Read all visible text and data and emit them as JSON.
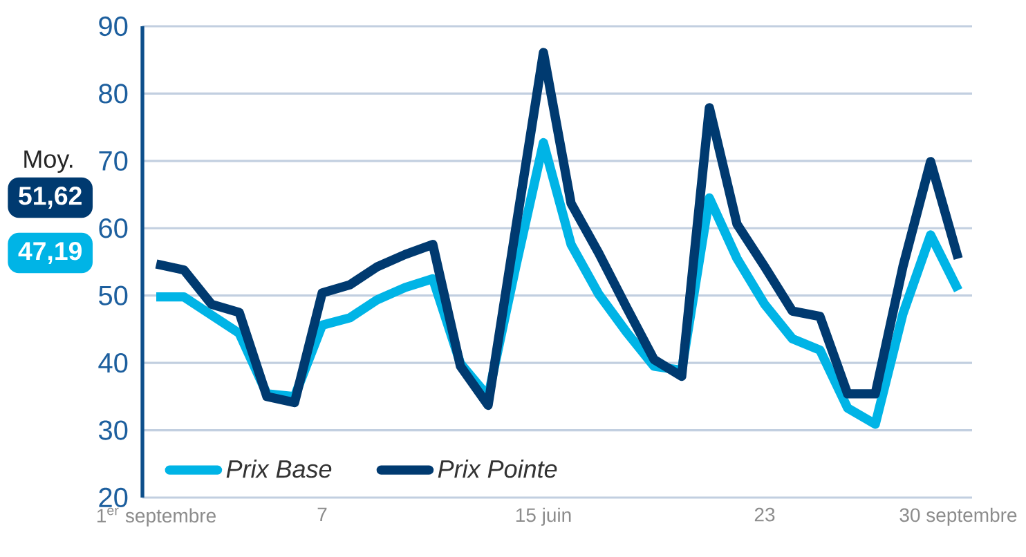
{
  "chart_data": {
    "type": "line",
    "x": [
      1,
      2,
      3,
      4,
      5,
      6,
      7,
      8,
      9,
      10,
      11,
      12,
      13,
      14,
      15,
      16,
      17,
      18,
      19,
      20,
      21,
      22,
      23,
      24,
      25,
      26,
      27,
      28,
      29,
      30
    ],
    "xlim": [
      0.5,
      30.5
    ],
    "xticks": [
      {
        "value": 1,
        "label": "1$^{er}$ septembre"
      },
      {
        "value": 7,
        "label": "7"
      },
      {
        "value": 15,
        "label": "15 juin"
      },
      {
        "value": 23,
        "label": "23"
      },
      {
        "value": 30,
        "label": "30 septembre"
      }
    ],
    "ylim": [
      20,
      90
    ],
    "yticks": [
      20,
      30,
      40,
      50,
      60,
      70,
      80,
      90
    ],
    "grid": "y",
    "legend": "bottom left",
    "series": [
      {
        "name": "Prix Base",
        "color": "#00b4e6",
        "values": [
          49.8,
          49.8,
          47.1,
          44.4,
          35.4,
          35.0,
          45.6,
          46.7,
          49.4,
          51.2,
          52.5,
          39.9,
          35.0,
          54.3,
          72.7,
          57.6,
          50.2,
          44.6,
          39.5,
          38.9,
          64.5,
          55.5,
          48.7,
          43.6,
          41.9,
          33.3,
          30.9,
          47.3,
          59.0,
          50.8
        ]
      },
      {
        "name": "Prix Pointe",
        "color": "#003a70",
        "values": [
          54.7,
          53.8,
          48.7,
          47.5,
          35.0,
          34.1,
          50.4,
          51.6,
          54.3,
          56.1,
          57.6,
          39.5,
          33.7,
          60.0,
          86.1,
          63.7,
          56.3,
          48.3,
          40.5,
          38.0,
          77.9,
          60.6,
          54.3,
          47.7,
          46.9,
          35.4,
          35.4,
          54.3,
          69.9,
          55.5
        ]
      }
    ],
    "annotations": [
      "Moy.",
      "47,19",
      "51,62"
    ]
  }
}
